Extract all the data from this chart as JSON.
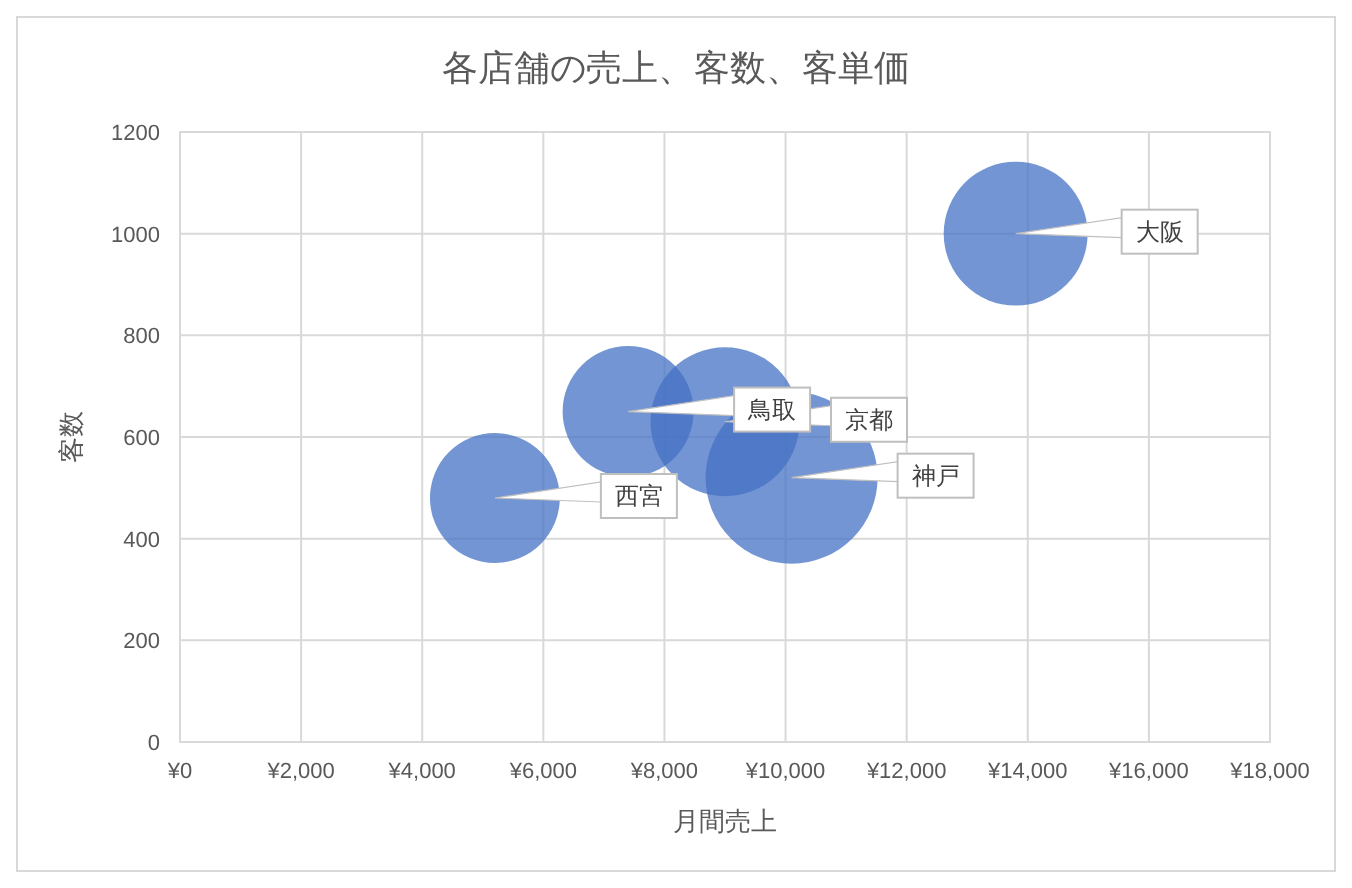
{
  "chart_data": {
    "type": "bubble",
    "title": "各店舗の売上、客数、客単価",
    "xlabel": "月間売上",
    "ylabel": "客数",
    "annotations": [
      {
        "text": "西宮",
        "x": 5200,
        "y": 480
      },
      {
        "text": "鳥取",
        "x": 7400,
        "y": 650
      },
      {
        "text": "京都",
        "x": 9000,
        "y": 630
      },
      {
        "text": "神戸",
        "x": 10100,
        "y": 520
      },
      {
        "text": "大阪",
        "x": 13800,
        "y": 1000
      }
    ],
    "x": [
      5200,
      7400,
      9000,
      10100,
      13800
    ],
    "values": [
      480,
      650,
      630,
      520,
      1000
    ],
    "sizes": [
      0.57,
      0.58,
      0.75,
      1,
      0.7
    ],
    "color": "#4472c4",
    "xlim": [
      0,
      18000
    ],
    "xticks": [
      {
        "value": 0,
        "label": "¥0"
      },
      {
        "value": 2000,
        "label": "¥2,000"
      },
      {
        "value": 4000,
        "label": "¥4,000"
      },
      {
        "value": 6000,
        "label": "¥6,000"
      },
      {
        "value": 8000,
        "label": "¥8,000"
      },
      {
        "value": 10000,
        "label": "¥10,000"
      },
      {
        "value": 12000,
        "label": "¥12,000"
      },
      {
        "value": 14000,
        "label": "¥14,000"
      },
      {
        "value": 16000,
        "label": "¥16,000"
      },
      {
        "value": 18000,
        "label": "¥18,000"
      }
    ],
    "ylim": [
      0,
      1200
    ],
    "yticks": [
      0,
      200,
      400,
      600,
      800,
      1000,
      1200
    ],
    "grid": true
  }
}
